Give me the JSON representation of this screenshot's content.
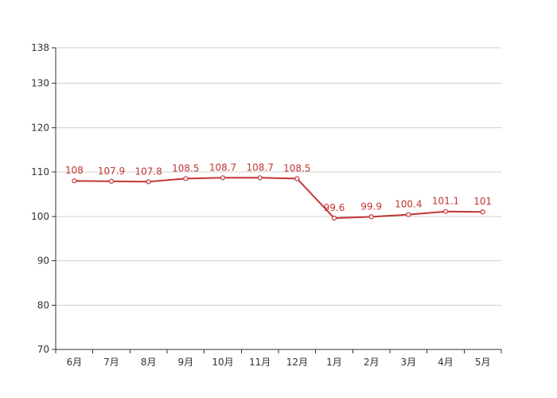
{
  "chart_data": {
    "type": "line",
    "categories": [
      "6月",
      "7月",
      "8月",
      "9月",
      "10月",
      "11月",
      "12月",
      "1月",
      "2月",
      "3月",
      "4月",
      "5月"
    ],
    "series": [
      {
        "values": [
          108,
          107.9,
          107.8,
          108.5,
          108.7,
          108.7,
          108.5,
          99.6,
          99.9,
          100.4,
          101.1,
          101
        ]
      }
    ],
    "data_labels": [
      "108",
      "107.9",
      "107.8",
      "108.5",
      "108.7",
      "108.7",
      "108.5",
      "99.6",
      "99.9",
      "100.4",
      "101.1",
      "101"
    ],
    "title": "",
    "xlabel": "",
    "ylabel": "",
    "ylim": [
      70,
      138
    ],
    "y_ticks": [
      70,
      80,
      90,
      100,
      110,
      120,
      130,
      138
    ],
    "y_tick_labels": [
      "70",
      "80",
      "90",
      "100",
      "110",
      "120",
      "130",
      "138"
    ],
    "grid": true,
    "legend": "none"
  },
  "colors": {
    "line": "#c23531",
    "label": "#c23531",
    "grid": "#cfcfcf",
    "axis": "#333333"
  }
}
